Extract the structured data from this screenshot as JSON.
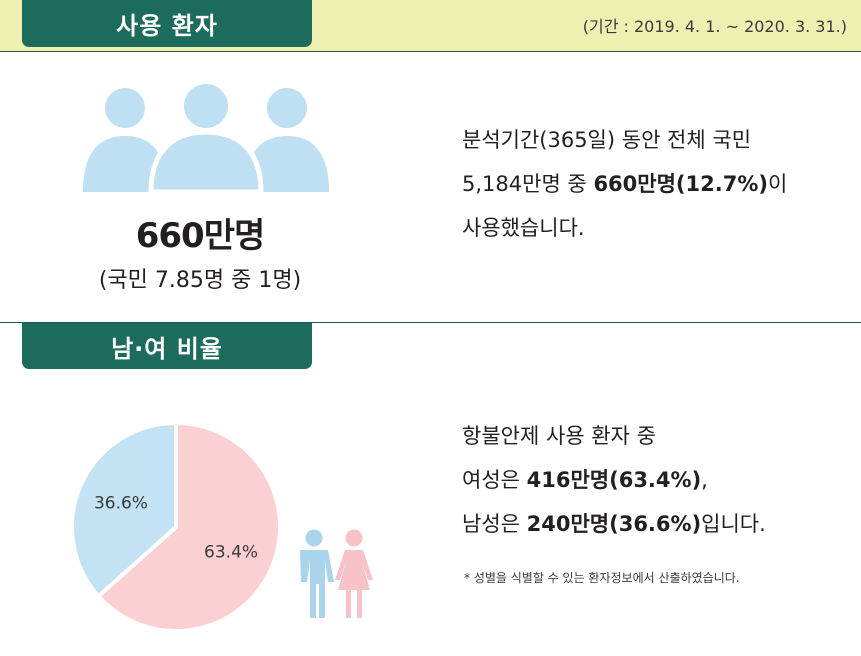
{
  "section1": {
    "title": "사용 환자",
    "period": "(기간 : 2019. 4. 1. ~ 2020. 3. 31.)",
    "count": "660만명",
    "ratio": "(국민 7.85명 중 1명)",
    "desc": {
      "line1": "분석기간(365일) 동안 전체 국민",
      "line2_pre": "5,184만명 중 ",
      "line2_bold": "660만명(12.7%)",
      "line2_post": "이",
      "line3": "사용했습니다."
    }
  },
  "section2": {
    "title": "남·여 비율",
    "desc": {
      "line1": "항불안제 사용 환자 중",
      "line2_pre": "여성은 ",
      "line2_bold": "416만명(63.4%)",
      "line2_post": ",",
      "line3_pre": "남성은 ",
      "line3_bold": "240만명(36.6%)",
      "line3_post": "입니다."
    },
    "footnote": "* 성별을 식별할 수 있는 환자정보에서 산출하였습니다."
  },
  "colors": {
    "green": "#1d6b5c",
    "top_bg": "#eef0b2",
    "blue": "#c3e2f4",
    "pink": "#fbd0d3",
    "person_blue": "#bfe0f2",
    "female_pink": "#f7c3c8",
    "male_blue": "#a9d4ec"
  },
  "icons": [
    "people-icon",
    "male-icon",
    "female-icon"
  ],
  "chart_data": {
    "type": "pie",
    "categories": [
      "여성",
      "남성"
    ],
    "values": [
      63.4,
      36.6
    ],
    "labels": [
      "63.4%",
      "36.6%"
    ],
    "colors": [
      "#fbd0d3",
      "#c3e2f4"
    ]
  }
}
